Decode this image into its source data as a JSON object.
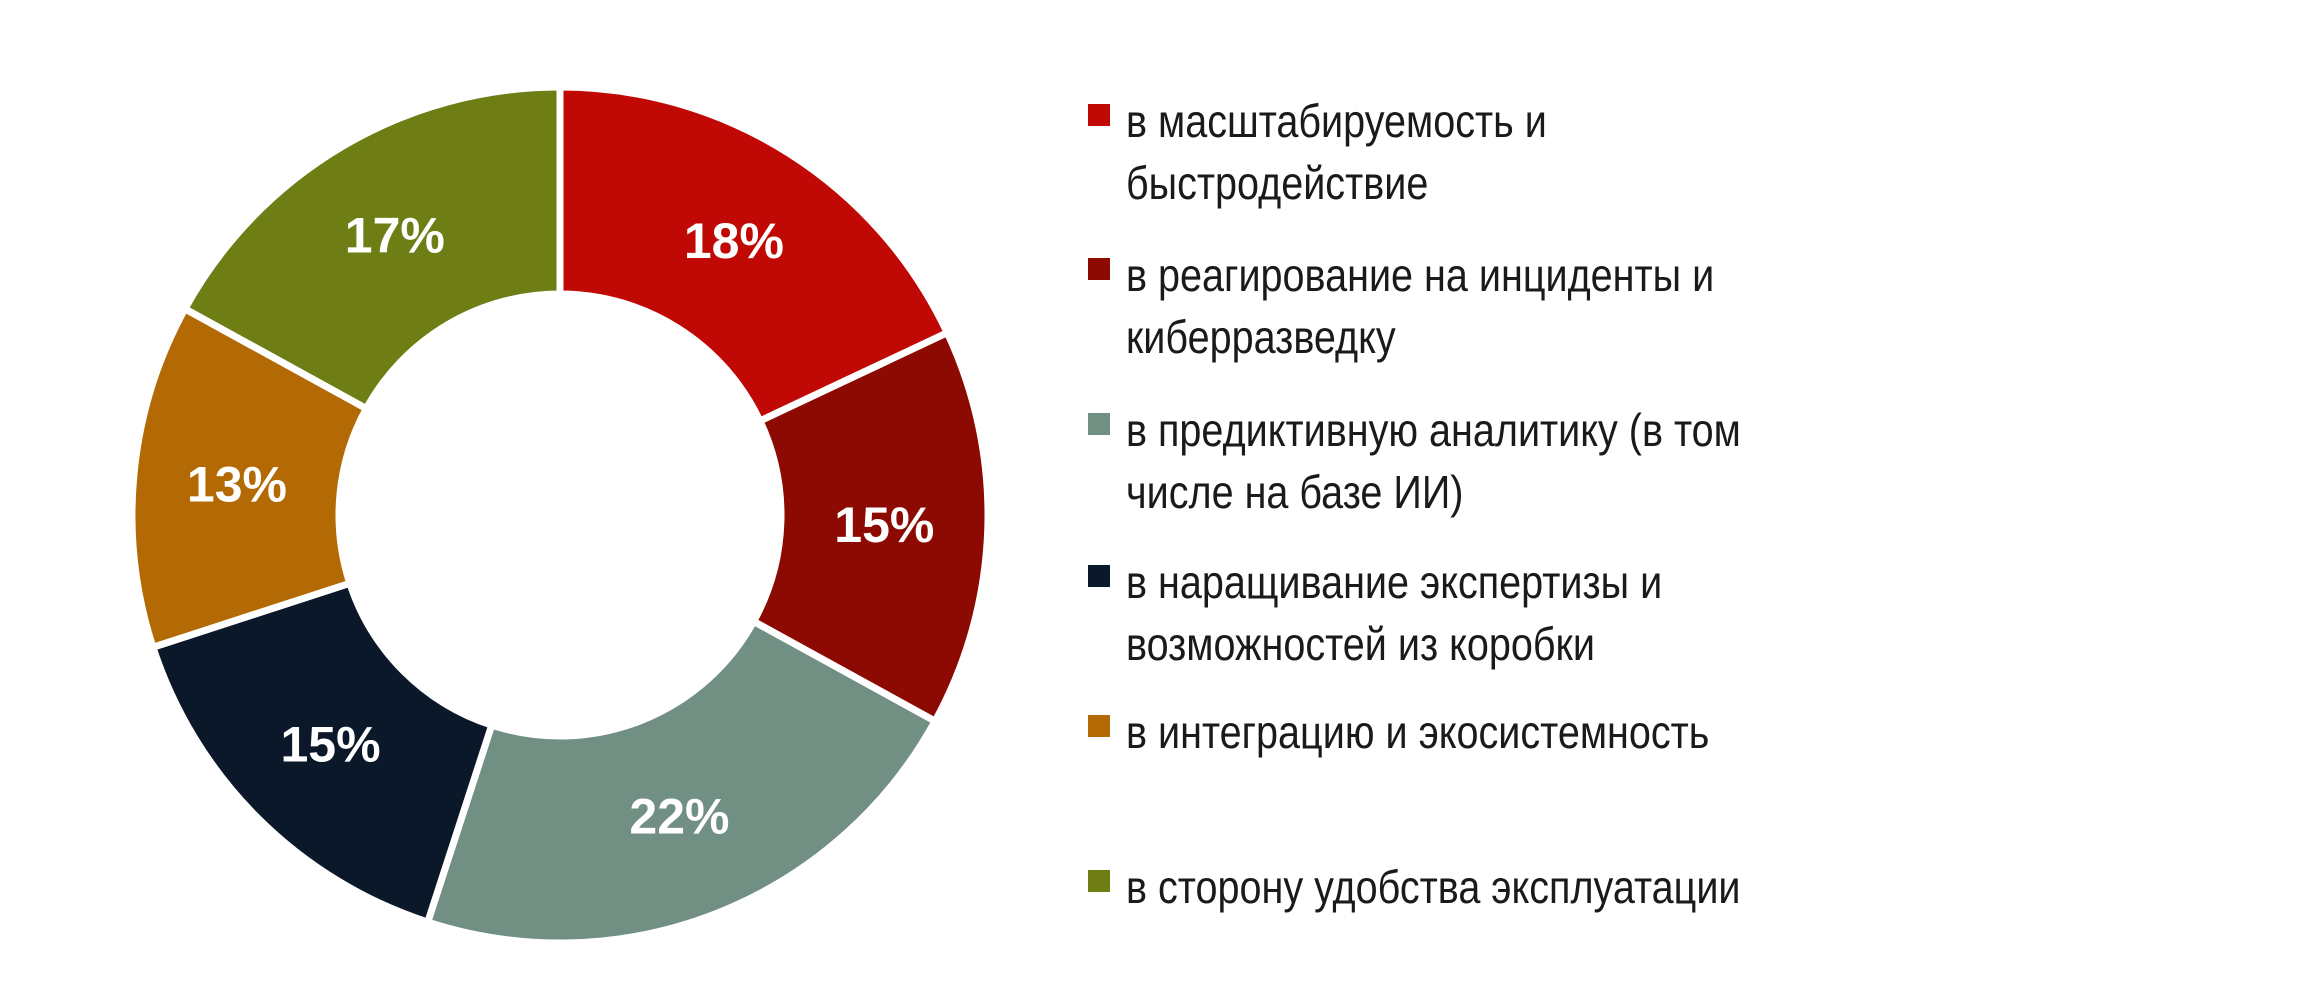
{
  "chart_data": {
    "type": "pie",
    "variant": "donut",
    "categories": [
      "в масштабируемость и быстродействие",
      "в реагирование на инциденты и киберразведку",
      "в предиктивную аналитику (в том числе на базе ИИ)",
      "в наращивание экспертизы и возможностей из коробки",
      "в интеграцию и экосистемность",
      "в сторону удобства эксплуатации"
    ],
    "values": [
      18,
      15,
      22,
      15,
      13,
      17
    ],
    "data_labels": [
      "18%",
      "15%",
      "22%",
      "15%",
      "13%",
      "17%"
    ],
    "colors": [
      "#C00804",
      "#8C0A02",
      "#718F82",
      "#0B1829",
      "#B46A04",
      "#6F7D15"
    ],
    "legend_position": "right",
    "title": ""
  }
}
